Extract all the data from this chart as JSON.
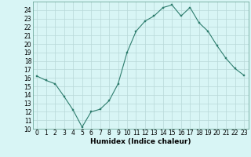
{
  "x": [
    0,
    1,
    2,
    3,
    4,
    5,
    6,
    7,
    8,
    9,
    10,
    11,
    12,
    13,
    14,
    15,
    16,
    17,
    18,
    19,
    20,
    21,
    22,
    23
  ],
  "y": [
    16.2,
    15.7,
    15.3,
    13.8,
    12.2,
    10.2,
    12.0,
    12.3,
    13.3,
    15.3,
    19.0,
    21.5,
    22.7,
    23.3,
    24.3,
    24.6,
    23.3,
    24.3,
    22.5,
    21.5,
    19.8,
    18.3,
    17.1,
    16.3
  ],
  "line_color": "#2e7d6e",
  "marker_color": "#2e7d6e",
  "bg_color": "#d8f5f5",
  "grid_color": "#b8d8d8",
  "xlabel": "Humidex (Indice chaleur)",
  "ylim": [
    10,
    25
  ],
  "xlim": [
    -0.5,
    23.5
  ],
  "yticks": [
    10,
    11,
    12,
    13,
    14,
    15,
    16,
    17,
    18,
    19,
    20,
    21,
    22,
    23,
    24
  ],
  "xticks": [
    0,
    1,
    2,
    3,
    4,
    5,
    6,
    7,
    8,
    9,
    10,
    11,
    12,
    13,
    14,
    15,
    16,
    17,
    18,
    19,
    20,
    21,
    22,
    23
  ],
  "tick_fontsize": 5.5,
  "label_fontsize": 6.5
}
